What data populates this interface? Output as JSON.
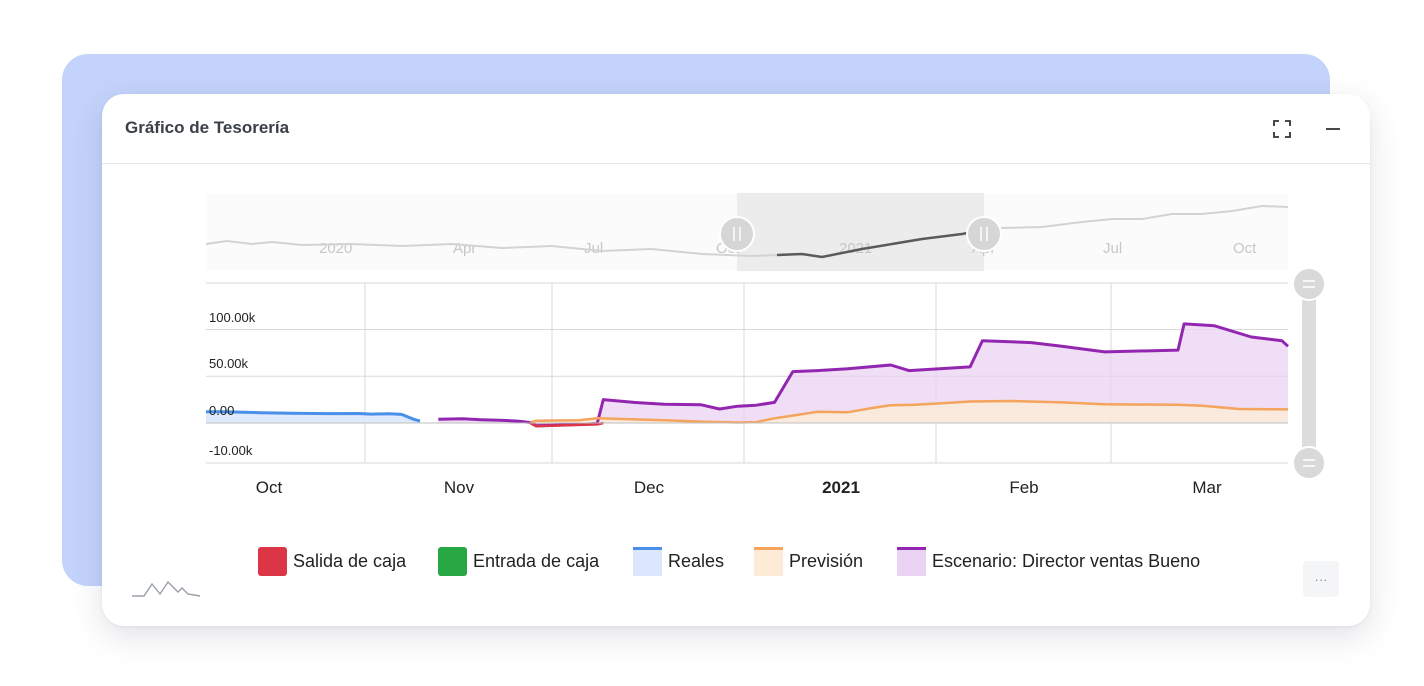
{
  "card": {
    "title": "Gráfico de Tesorería",
    "expand_icon": "expand-icon",
    "minimize_icon": "minimize-icon",
    "more_label": "···",
    "logo_icon": "sparkline-logo-icon"
  },
  "colors": {
    "backdrop": "#c3d3fb",
    "salida": "#dc3545",
    "entrada": "#28a745",
    "reales_line": "#4a90e8",
    "reales_fill": "#dbe7fc",
    "prevision_line": "#f4a45c",
    "prevision_fill": "#fdebd7",
    "escenario_line": "#9326b0",
    "escenario_fill": "#ead3f2"
  },
  "legend": [
    {
      "label": "Salida de caja",
      "type": "box",
      "color": "#dc3545"
    },
    {
      "label": "Entrada de caja",
      "type": "box",
      "color": "#28a745"
    },
    {
      "label": "Reales",
      "type": "line",
      "color": "#4a90e8",
      "fill": "#dbe7fc"
    },
    {
      "label": "Previsión",
      "type": "line",
      "color": "#f4a45c",
      "fill": "#fdebd7"
    },
    {
      "label": "Escenario: Director ventas Bueno",
      "type": "line",
      "color": "#9326b0",
      "fill": "#ead3f2"
    }
  ],
  "chart_data": {
    "type": "area",
    "title": "",
    "xlabel": "",
    "ylabel": "",
    "y_ticks": [
      {
        "value": 100000,
        "label": "100.00k"
      },
      {
        "value": 50000,
        "label": "50.00k"
      },
      {
        "value": 0,
        "label": "0.00"
      },
      {
        "value": -10000,
        "label": "-10.00k"
      }
    ],
    "x_ticks": [
      {
        "date": "2020-10-01",
        "label": "Oct",
        "bold": false
      },
      {
        "date": "2020-11-01",
        "label": "Nov",
        "bold": false
      },
      {
        "date": "2020-12-01",
        "label": "Dec",
        "bold": false
      },
      {
        "date": "2021-01-01",
        "label": "2021",
        "bold": true
      },
      {
        "date": "2021-02-01",
        "label": "Feb",
        "bold": false
      },
      {
        "date": "2021-03-01",
        "label": "Mar",
        "bold": false
      }
    ],
    "ylim": [
      -10000,
      140000
    ],
    "xlim": [
      "2020-09-22",
      "2021-03-18"
    ],
    "grid": true,
    "legend_position": "bottom",
    "navigator": {
      "labels": [
        "2020",
        "Apr",
        "Jul",
        "Oct",
        "2021",
        "Apr",
        "Jul",
        "Oct"
      ],
      "selected_range": [
        "2020-09-22",
        "2021-03-18"
      ]
    },
    "series": [
      {
        "name": "Reales",
        "points": [
          [
            "2020-09-22",
            12000
          ],
          [
            "2020-09-25",
            12000
          ],
          [
            "2020-09-28",
            11500
          ],
          [
            "2020-10-01",
            11000
          ],
          [
            "2020-10-06",
            10500
          ],
          [
            "2020-10-12",
            10000
          ],
          [
            "2020-10-17",
            10200
          ],
          [
            "2020-10-19",
            9500
          ],
          [
            "2020-10-22",
            9800
          ],
          [
            "2020-10-24",
            9200
          ],
          [
            "2020-10-26",
            4000
          ],
          [
            "2020-10-27",
            2000
          ]
        ]
      },
      {
        "name": "Previsión",
        "points": [
          [
            "2020-11-14",
            500
          ],
          [
            "2020-11-15",
            2500
          ],
          [
            "2020-11-22",
            3000
          ],
          [
            "2020-11-25",
            5000
          ],
          [
            "2020-12-06",
            3000
          ],
          [
            "2020-12-12",
            1500
          ],
          [
            "2020-12-18",
            500
          ],
          [
            "2020-12-21",
            1000
          ],
          [
            "2020-12-24",
            5000
          ],
          [
            "2020-12-28",
            9000
          ],
          [
            "2020-12-31",
            12000
          ],
          [
            "2021-01-05",
            11500
          ],
          [
            "2021-01-09",
            16000
          ],
          [
            "2021-01-12",
            19000
          ],
          [
            "2021-01-16",
            19500
          ],
          [
            "2021-01-20",
            21000
          ],
          [
            "2021-01-25",
            23000
          ],
          [
            "2021-02-01",
            23500
          ],
          [
            "2021-02-09",
            22000
          ],
          [
            "2021-02-16",
            20000
          ],
          [
            "2021-02-28",
            19500
          ],
          [
            "2021-03-04",
            18500
          ],
          [
            "2021-03-10",
            15000
          ],
          [
            "2021-03-18",
            14500
          ]
        ]
      },
      {
        "name": "Escenario: Director ventas Bueno",
        "points": [
          [
            "2020-10-30",
            4000
          ],
          [
            "2020-11-03",
            4500
          ],
          [
            "2020-11-06",
            3500
          ],
          [
            "2020-11-09",
            3000
          ],
          [
            "2020-11-12",
            2000
          ],
          [
            "2020-11-14",
            500
          ],
          [
            "2020-11-15",
            -3000
          ],
          [
            "2020-11-18",
            -2500
          ],
          [
            "2020-11-22",
            -1500
          ],
          [
            "2020-11-25",
            -500
          ],
          [
            "2020-11-26",
            25000
          ],
          [
            "2020-12-01",
            22000
          ],
          [
            "2020-12-06",
            20000
          ],
          [
            "2020-12-12",
            19500
          ],
          [
            "2020-12-15",
            15000
          ],
          [
            "2020-12-18",
            18000
          ],
          [
            "2020-12-21",
            19000
          ],
          [
            "2020-12-24",
            22000
          ],
          [
            "2020-12-27",
            55000
          ],
          [
            "2020-12-31",
            56000
          ],
          [
            "2021-01-05",
            58000
          ],
          [
            "2021-01-12",
            62000
          ],
          [
            "2021-01-15",
            56000
          ],
          [
            "2021-01-20",
            58000
          ],
          [
            "2021-01-25",
            60000
          ],
          [
            "2021-01-27",
            88000
          ],
          [
            "2021-02-04",
            86000
          ],
          [
            "2021-02-09",
            82000
          ],
          [
            "2021-02-16",
            76000
          ],
          [
            "2021-02-28",
            78000
          ],
          [
            "2021-03-01",
            106000
          ],
          [
            "2021-03-06",
            104000
          ],
          [
            "2021-03-12",
            92000
          ],
          [
            "2021-03-17",
            88000
          ],
          [
            "2021-03-18",
            82000
          ]
        ]
      },
      {
        "name": "Salida de caja",
        "points": [
          [
            "2020-11-14",
            500
          ],
          [
            "2020-11-15",
            -3500
          ],
          [
            "2020-11-20",
            -2500
          ],
          [
            "2020-11-25",
            -1500
          ],
          [
            "2020-11-26",
            0
          ]
        ]
      }
    ]
  }
}
